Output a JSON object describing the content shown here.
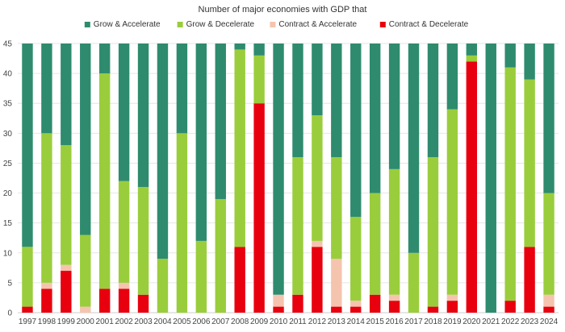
{
  "chart_data": {
    "type": "bar",
    "stacked": true,
    "title": "Number of major economies with GDP that",
    "xlabel": "",
    "ylabel": "",
    "ylim": [
      0,
      45
    ],
    "yticks": [
      0,
      5,
      10,
      15,
      20,
      25,
      30,
      35,
      40,
      45
    ],
    "grid": true,
    "legend_position": "top-center",
    "categories": [
      "1997",
      "1998",
      "1999",
      "2000",
      "2001",
      "2002",
      "2003",
      "2004",
      "2005",
      "2006",
      "2007",
      "2008",
      "2009",
      "2010",
      "2011",
      "2012",
      "2013",
      "2014",
      "2015",
      "2016",
      "2017",
      "2018",
      "2019",
      "2020",
      "2021",
      "2022",
      "2023",
      "2024"
    ],
    "series": [
      {
        "name": "Contract & Decelerate",
        "color": "#e8000e",
        "values": [
          1,
          4,
          7,
          0,
          4,
          4,
          3,
          0,
          0,
          0,
          0,
          11,
          35,
          1,
          3,
          11,
          1,
          1,
          3,
          2,
          0,
          1,
          2,
          42,
          0,
          2,
          11,
          1
        ]
      },
      {
        "name": "Contract & Accelerate",
        "color": "#f5c4ae",
        "values": [
          0,
          1,
          1,
          1,
          0,
          1,
          0,
          0,
          0,
          0,
          0,
          0,
          0,
          2,
          0,
          1,
          8,
          1,
          0,
          1,
          0,
          0,
          1,
          0,
          0,
          0,
          0,
          2
        ]
      },
      {
        "name": "Grow & Decelerate",
        "color": "#9acd3c",
        "values": [
          10,
          25,
          20,
          12,
          36,
          17,
          18,
          9,
          30,
          12,
          19,
          33,
          8,
          0,
          23,
          21,
          17,
          14,
          17,
          21,
          10,
          25,
          31,
          1,
          0,
          39,
          28,
          17
        ]
      },
      {
        "name": "Grow & Accelerate",
        "color": "#2e8b6e",
        "values": [
          34,
          15,
          17,
          32,
          5,
          23,
          24,
          36,
          15,
          33,
          26,
          1,
          2,
          42,
          19,
          12,
          19,
          29,
          25,
          21,
          35,
          19,
          11,
          2,
          45,
          4,
          6,
          25
        ]
      }
    ],
    "legend_order": [
      "Grow & Accelerate",
      "Grow & Decelerate",
      "Contract & Accelerate",
      "Contract & Decelerate"
    ]
  }
}
